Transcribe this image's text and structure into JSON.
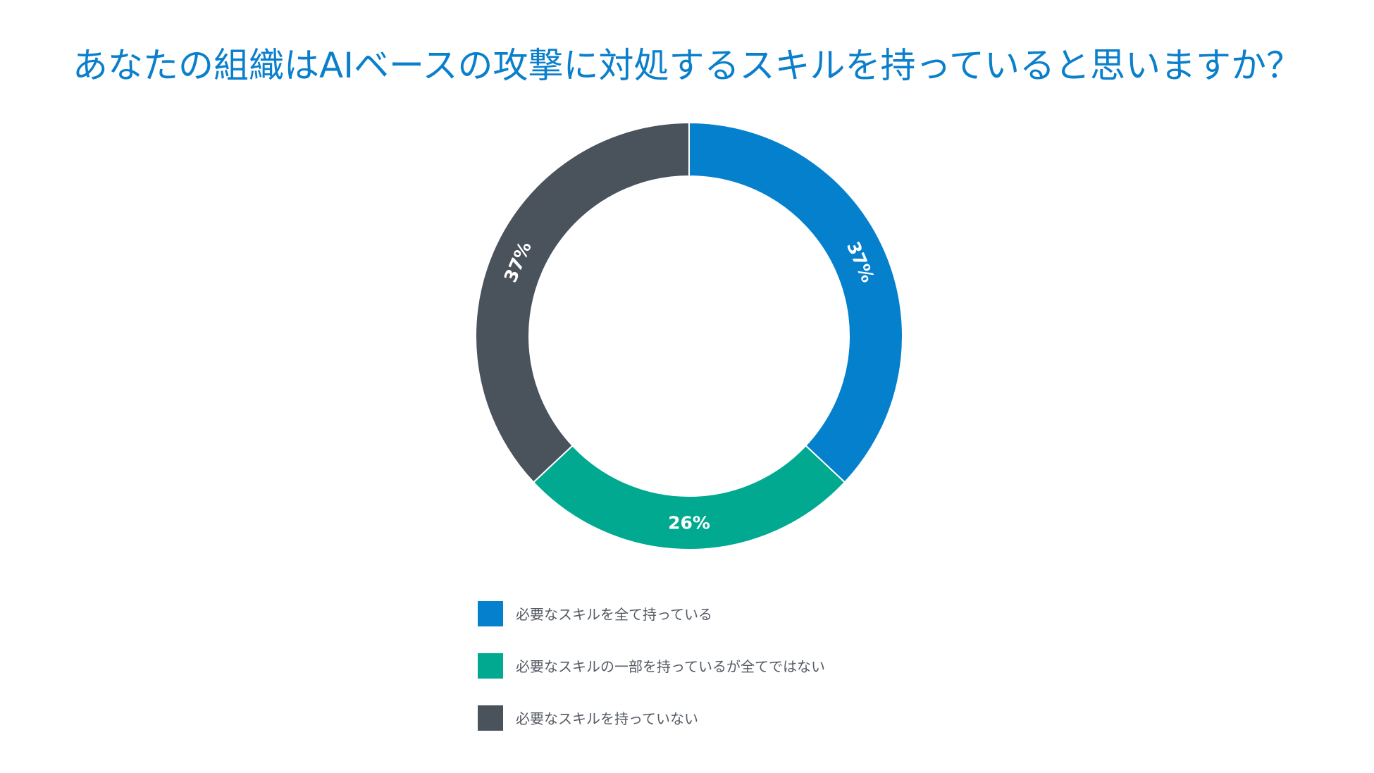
{
  "chart_data": {
    "type": "pie",
    "title": "あなたの組織はAIベースの攻撃に対処するスキルを持っていると思いますか？",
    "categories": [
      "必要なスキルを全て持っている",
      "必要なスキルの一部を持っているが全てではない",
      "必要なスキルを持っていない"
    ],
    "values": [
      37,
      26,
      37
    ],
    "value_labels": [
      "37%",
      "26%",
      "37%"
    ],
    "colors": [
      "#0480cd",
      "#00a98f",
      "#4a525c"
    ],
    "donut": true,
    "legend_position": "bottom"
  }
}
